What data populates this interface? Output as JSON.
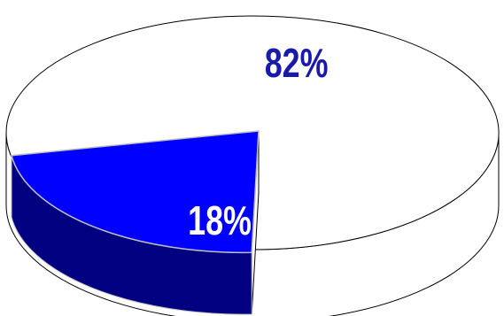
{
  "chart_data": {
    "type": "pie",
    "style": "3d-exploded",
    "slices": [
      {
        "label": "82%",
        "value": 82,
        "color": "#ffffff",
        "label_color": "#1a1aa8",
        "exploded": false
      },
      {
        "label": "18%",
        "value": 18,
        "color": "#0000ff",
        "side_color": "#000080",
        "label_color": "#ffffff",
        "exploded": true
      }
    ],
    "title": "",
    "legend": "none"
  }
}
